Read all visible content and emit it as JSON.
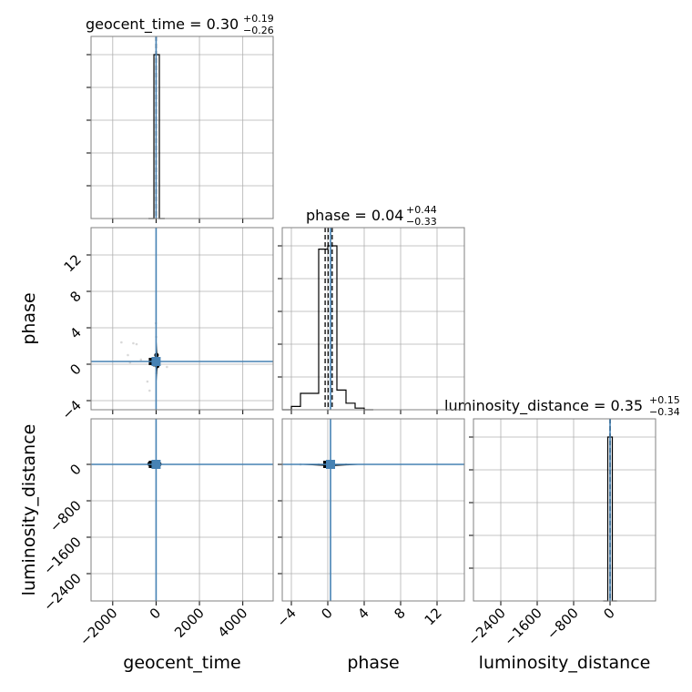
{
  "chart_data": {
    "type": "scatter",
    "plot_kind": "corner",
    "parameters": [
      "geocent_time",
      "phase",
      "luminosity_distance"
    ],
    "truths": {
      "geocent_time": 0,
      "phase": 0.3,
      "luminosity_distance": 0
    },
    "titles": [
      {
        "param": "geocent_time",
        "prefix": "geocent_time = ",
        "median": "0.30",
        "upper": "+0.19",
        "lower": "−0.26"
      },
      {
        "param": "phase",
        "prefix": "phase = ",
        "median": "0.04",
        "upper": "+0.44",
        "lower": "−0.33"
      },
      {
        "param": "luminosity_distance",
        "prefix": "luminosity_distance = ",
        "median": "0.35",
        "upper": "+0.15",
        "lower": "−0.34"
      }
    ],
    "axes": {
      "geocent_time": {
        "range": [
          -3000,
          5400
        ],
        "ticks": [
          -2000,
          0,
          2000,
          4000
        ],
        "ticklabels": [
          "−2000",
          "0",
          "2000",
          "4000"
        ]
      },
      "phase": {
        "range": [
          -5,
          15
        ],
        "ticks": [
          -4,
          0,
          4,
          8,
          12
        ],
        "ticklabels": [
          "−4",
          "0",
          "4",
          "8",
          "12"
        ]
      },
      "luminosity_distance": {
        "range": [
          -3000,
          1000
        ],
        "ticks": [
          -2400,
          -1600,
          -800,
          0
        ],
        "ticklabels": [
          "−2400",
          "−1600",
          "−800",
          "0"
        ]
      }
    },
    "quantile_lines": {
      "geocent_time": [
        0.04,
        0.3,
        0.49
      ],
      "phase": [
        -0.29,
        0.04,
        0.48
      ],
      "luminosity_distance": [
        0.01,
        0.35,
        0.5
      ]
    },
    "marginals": {
      "geocent_time": {
        "bin_edges": [
          -350,
          -100,
          150,
          400
        ],
        "counts": [
          0,
          1.0,
          0
        ]
      },
      "phase": {
        "bin_edges": [
          -5,
          -4,
          -3,
          -2,
          -1,
          0,
          1,
          2,
          3,
          4,
          5
        ],
        "counts": [
          0,
          0.02,
          0.1,
          0.1,
          0.98,
          1.0,
          0.12,
          0.04,
          0.01,
          0
        ]
      },
      "luminosity_distance": {
        "bin_edges": [
          -150,
          -50,
          50,
          150
        ],
        "counts": [
          0,
          1.0,
          0
        ]
      }
    },
    "samples": {
      "geocent_time_vs_phase": [
        [
          -1600,
          2.4
        ],
        [
          -1300,
          1.0
        ],
        [
          -1050,
          2.3
        ],
        [
          -900,
          2.2
        ],
        [
          -1200,
          0.2
        ],
        [
          -700,
          0.5
        ],
        [
          -400,
          -1.9
        ],
        [
          -300,
          -2.9
        ],
        [
          500,
          -0.3
        ],
        [
          -100,
          0.0
        ],
        [
          0,
          0.2
        ],
        [
          50,
          -0.2
        ],
        [
          -60,
          0.4
        ],
        [
          20,
          1.0
        ],
        [
          10,
          -1.0
        ],
        [
          5,
          3.0
        ],
        [
          -10,
          4.5
        ]
      ],
      "geocent_time_vs_luminosity_distance": [
        [
          -300,
          10
        ],
        [
          -150,
          -10
        ],
        [
          0,
          0
        ],
        [
          80,
          20
        ],
        [
          -50,
          -30
        ],
        [
          150,
          5
        ]
      ],
      "phase_vs_luminosity_distance": [
        [
          -1.0,
          0
        ],
        [
          -0.5,
          -10
        ],
        [
          0.0,
          10
        ],
        [
          0.5,
          -5
        ],
        [
          -3.0,
          -2
        ],
        [
          2.0,
          2
        ]
      ]
    },
    "grid": true,
    "legend": "none"
  }
}
